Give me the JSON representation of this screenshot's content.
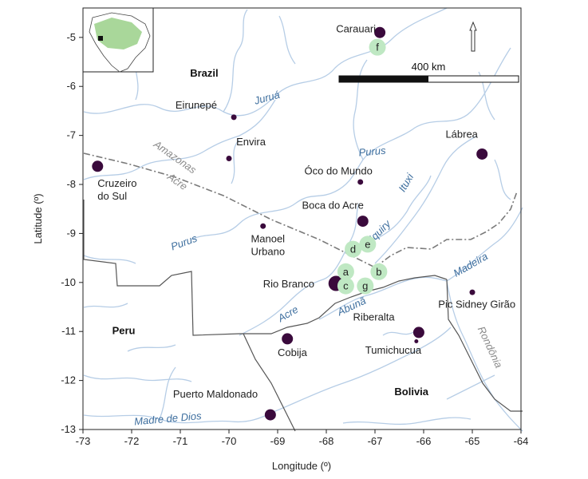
{
  "axes": {
    "x_label": "Longitude (º)",
    "y_label": "Latitude (º)",
    "x_ticks": [
      "-73",
      "-72",
      "-71",
      "-70",
      "-69",
      "-68",
      "-67",
      "-66",
      "-65",
      "-64"
    ],
    "y_ticks": [
      "-5",
      "-6",
      "-7",
      "-8",
      "-9",
      "-10",
      "-11",
      "-12",
      "-13"
    ],
    "x_range": [
      -73,
      -64
    ],
    "y_range": [
      -13,
      -4.4
    ]
  },
  "countries": [
    {
      "label": "Brazil",
      "lon": -70.8,
      "lat": -5.8
    },
    {
      "label": "Peru",
      "lon": -72.4,
      "lat": -11.05
    },
    {
      "label": "Bolivia",
      "lon": -66.6,
      "lat": -12.3
    }
  ],
  "cities": [
    {
      "lines": [
        "Carauari"
      ],
      "lon": -66.9,
      "lat": -4.9,
      "size": "large",
      "label_lon": -67.8,
      "label_lat": -4.9,
      "anchor": "start"
    },
    {
      "lines": [
        "Eirunepé"
      ],
      "lon": -69.9,
      "lat": -6.63,
      "size": "small",
      "label_lon": -71.1,
      "label_lat": -6.45,
      "anchor": "start"
    },
    {
      "lines": [
        "Envira"
      ],
      "lon": -70.0,
      "lat": -7.47,
      "size": "small",
      "label_lon": -69.85,
      "label_lat": -7.2,
      "anchor": "start"
    },
    {
      "lines": [
        "Cruzeiro",
        "do Sul"
      ],
      "lon": -72.7,
      "lat": -7.63,
      "size": "large",
      "label_lon": -72.7,
      "label_lat": -8.05,
      "anchor": "start"
    },
    {
      "lines": [
        "Óco do Mundo"
      ],
      "lon": -67.3,
      "lat": -7.95,
      "size": "small",
      "label_lon": -68.45,
      "label_lat": -7.8,
      "anchor": "start"
    },
    {
      "lines": [
        "Boca do Acre"
      ],
      "lon": -67.25,
      "lat": -8.75,
      "size": "large",
      "label_lon": -68.5,
      "label_lat": -8.5,
      "anchor": "start"
    },
    {
      "lines": [
        "Lábrea"
      ],
      "lon": -64.8,
      "lat": -7.38,
      "size": "large",
      "label_lon": -65.55,
      "label_lat": -7.05,
      "anchor": "start"
    },
    {
      "lines": [
        "Manoel",
        "Urbano"
      ],
      "lon": -69.3,
      "lat": -8.85,
      "size": "small",
      "label_lon": -69.55,
      "label_lat": -9.18,
      "anchor": "start"
    },
    {
      "lines": [
        "Rio Branco"
      ],
      "lon": -67.8,
      "lat": -10.02,
      "size": "xlarge",
      "label_lon": -69.3,
      "label_lat": -10.1,
      "anchor": "start"
    },
    {
      "lines": [
        "Pic Sidney Girão"
      ],
      "lon": -65.0,
      "lat": -10.2,
      "size": "small",
      "label_lon": -65.7,
      "label_lat": -10.52,
      "anchor": "start"
    },
    {
      "lines": [
        "Riberalta"
      ],
      "lon": -66.1,
      "lat": -11.02,
      "size": "large",
      "label_lon": -67.45,
      "label_lat": -10.78,
      "anchor": "start"
    },
    {
      "lines": [
        "Tumichucua"
      ],
      "lon": -66.15,
      "lat": -11.2,
      "size": "tiny",
      "label_lon": -67.2,
      "label_lat": -11.45,
      "anchor": "start"
    },
    {
      "lines": [
        "Cobija"
      ],
      "lon": -68.8,
      "lat": -11.15,
      "size": "large",
      "label_lon": -69.0,
      "label_lat": -11.5,
      "anchor": "start"
    },
    {
      "lines": [
        "Puerto  Maldonado"
      ],
      "lon": -69.15,
      "lat": -12.7,
      "size": "large",
      "label_lon": -71.15,
      "label_lat": -12.35,
      "anchor": "start"
    }
  ],
  "rivers": [
    {
      "label": "Juruá",
      "lon": -69.2,
      "lat": -6.3,
      "rotate": -15
    },
    {
      "label": "Purus",
      "lon": -67.05,
      "lat": -7.4,
      "rotate": -5
    },
    {
      "label": "Ituxi",
      "lon": -66.3,
      "lat": -8.0,
      "rotate": -60
    },
    {
      "label": "Iquiry",
      "lon": -66.85,
      "lat": -9.0,
      "rotate": -45
    },
    {
      "label": "Purus",
      "lon": -70.9,
      "lat": -9.25,
      "rotate": -20
    },
    {
      "label": "Madeira",
      "lon": -65.0,
      "lat": -9.7,
      "rotate": -30
    },
    {
      "label": "Abunã",
      "lon": -67.45,
      "lat": -10.55,
      "rotate": -25
    },
    {
      "label": "Acre",
      "lon": -68.75,
      "lat": -10.7,
      "rotate": -30
    },
    {
      "label": "Madre de Dios",
      "lon": -71.25,
      "lat": -12.85,
      "rotate": -5
    }
  ],
  "states": [
    {
      "label": "Amazonas",
      "lon": -71.15,
      "lat": -7.5,
      "rotate": 35
    },
    {
      "label": "Acre",
      "lon": -71.1,
      "lat": -8.0,
      "rotate": 35
    },
    {
      "label": "Rondônia",
      "lon": -64.7,
      "lat": -11.35,
      "rotate": 65
    }
  ],
  "sites": [
    {
      "label": "f",
      "lon": -66.95,
      "lat": -5.2
    },
    {
      "label": "d",
      "lon": -67.45,
      "lat": -9.32
    },
    {
      "label": "e",
      "lon": -67.15,
      "lat": -9.22
    },
    {
      "label": "a",
      "lon": -67.6,
      "lat": -9.78
    },
    {
      "label": "b",
      "lon": -66.92,
      "lat": -9.78
    },
    {
      "label": "c",
      "lon": -67.6,
      "lat": -10.07
    },
    {
      "label": "g",
      "lon": -67.2,
      "lat": -10.07
    }
  ],
  "scale_bar": {
    "label": "400 km"
  },
  "colors": {
    "river": "#b6cde6",
    "border": "#555555",
    "state_border": "#7a7a7a",
    "city": "#3a0a3c",
    "site": "#bfe8c3",
    "amazon_green": "#a9d79a",
    "site_text": "#222222"
  },
  "north_arrow": "north-arrow-icon"
}
